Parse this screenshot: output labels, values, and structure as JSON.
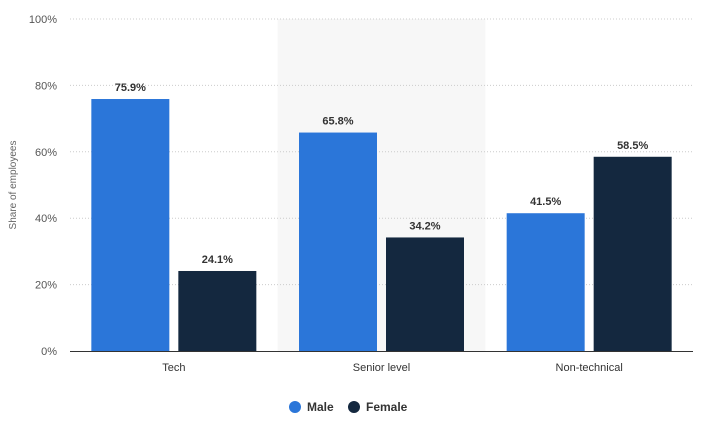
{
  "chart_data": {
    "type": "bar",
    "categories": [
      "Tech",
      "Senior level",
      "Non-technical"
    ],
    "highlighted_category": "Senior level",
    "series": [
      {
        "name": "Male",
        "values": [
          75.9,
          65.8,
          41.5
        ],
        "labels": [
          "75.9%",
          "65.8%",
          "41.5%"
        ],
        "color": "#2b76d9"
      },
      {
        "name": "Female",
        "values": [
          24.1,
          34.2,
          58.5
        ],
        "labels": [
          "24.1%",
          "34.2%",
          "58.5%"
        ],
        "color": "#14283f"
      }
    ],
    "yticks": [
      {
        "value": 0,
        "label": "0%"
      },
      {
        "value": 20,
        "label": "20%"
      },
      {
        "value": 40,
        "label": "40%"
      },
      {
        "value": 60,
        "label": "60%"
      },
      {
        "value": 80,
        "label": "80%"
      },
      {
        "value": 100,
        "label": "100%"
      }
    ],
    "ylim": [
      0,
      100
    ],
    "ylabel": "Share of employees",
    "xlabel": "",
    "grid": true,
    "legend_position": "bottom-center",
    "colors": {
      "highlight_band": "#f7f7f7",
      "gridline": "#cccccc",
      "baseline": "#333333"
    }
  }
}
